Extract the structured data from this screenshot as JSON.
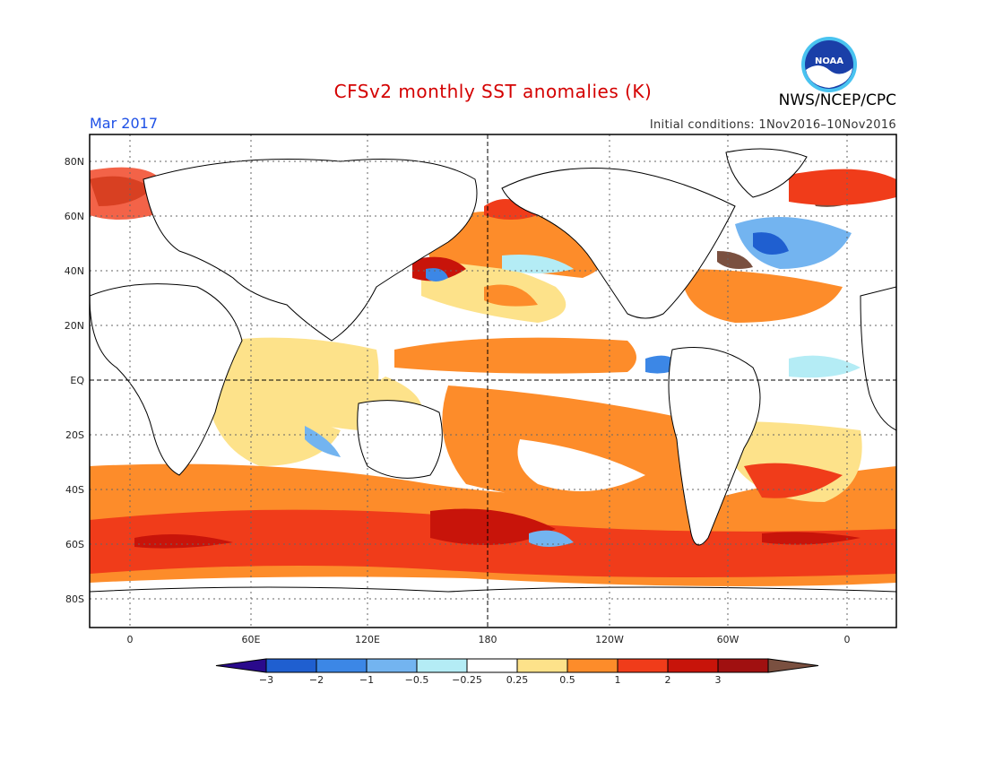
{
  "header": {
    "title": "CFSv2 monthly SST anomalies (K)",
    "period": "Mar 2017",
    "initial_conditions": "Initial conditions: 1Nov2016–10Nov2016",
    "agency": "NWS/NCEP/CPC",
    "logo_text": "NOAA"
  },
  "map": {
    "lat_labels": [
      "80N",
      "60N",
      "40N",
      "20N",
      "EQ",
      "20S",
      "40S",
      "60S",
      "80S"
    ],
    "lon_labels": [
      "0",
      "60E",
      "120E",
      "180",
      "120W",
      "60W",
      "0"
    ],
    "lon_range": [
      -20,
      380
    ],
    "lat_range": [
      -90,
      90
    ]
  },
  "colorbar": {
    "labels": [
      "−3",
      "−2",
      "−1",
      "−0.5",
      "−0.25",
      "0.25",
      "0.5",
      "1",
      "2",
      "3"
    ],
    "colors": [
      "#2a0a8c",
      "#1f5fd0",
      "#3c87e6",
      "#73b4f0",
      "#b4ecf5",
      "#ffffff",
      "#fde28a",
      "#fd8c2a",
      "#f03c1a",
      "#c8140a",
      "#a01010",
      "#7a5040"
    ]
  }
}
